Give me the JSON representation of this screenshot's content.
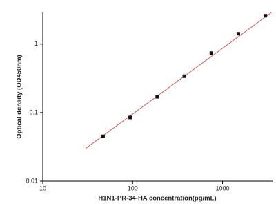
{
  "chart_data": {
    "type": "scatter",
    "xlabel": "H1N1-PR-34-HA concentration(pg/mL)",
    "ylabel": "Optical density (OD450nm)",
    "x": [
      46.875,
      93.75,
      187.5,
      375,
      750,
      1500,
      3000
    ],
    "series": [
      {
        "values": [
          0.045,
          0.085,
          0.17,
          0.34,
          0.74,
          1.42,
          2.6
        ],
        "color": "#111111"
      }
    ],
    "fit": {
      "x": [
        30,
        3500
      ],
      "values": [
        0.03,
        2.9
      ],
      "color": "#e05555"
    },
    "xscale": "log",
    "yscale": "log",
    "xlim": [
      10,
      3600
    ],
    "ylim": [
      0.01,
      2.9
    ],
    "xticks": [
      10,
      100,
      1000
    ],
    "yticks": [
      0.01,
      0.1,
      1
    ]
  }
}
